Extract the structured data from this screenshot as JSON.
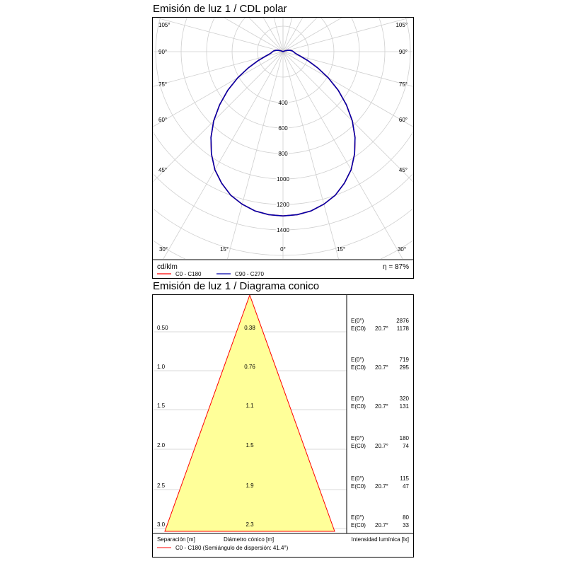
{
  "polar": {
    "title": "Emisión de luz 1 / CDL polar",
    "unit": "cd/klm",
    "efficiency": "η = 87%",
    "legend": [
      {
        "name": "C0 - C180",
        "color": "#ff0000"
      },
      {
        "name": "C90 - C270",
        "color": "#0000aa"
      }
    ]
  },
  "cone": {
    "title": "Emisión de luz 1 / Diagrama conico",
    "footer_labels": {
      "separation": "Separación [m]",
      "diameter": "Diámetro cónico [m]",
      "intensity": "Intensidad lumínica [lx]"
    },
    "legend": "C0 - C180 (Semiángulo de dispersión: 41.4°)",
    "legend_color": "#ff0000",
    "fill_color": "#ffff99"
  },
  "chart_data": [
    {
      "type": "polar",
      "title": "Emisión de luz 1 / CDL polar",
      "radial_unit": "cd/klm",
      "radial_ticks": [
        400,
        600,
        800,
        1000,
        1200,
        1400
      ],
      "angle_labels_left": [
        "105°",
        "90°",
        "75°",
        "60°",
        "45°",
        "30°",
        "15°"
      ],
      "angle_labels_bottom": [
        "30°",
        "15°",
        "0°",
        "15°",
        "30°"
      ],
      "angle_labels_right": [
        "105°",
        "90°",
        "75°",
        "60°",
        "45°",
        "30°",
        "15°"
      ],
      "series": [
        {
          "name": "C90 - C270",
          "color": "#0000aa",
          "angles": [
            0,
            5,
            10,
            15,
            20,
            25,
            30,
            35,
            40,
            45,
            50,
            55,
            60,
            65,
            70,
            75,
            80,
            85,
            90,
            95,
            100,
            105,
            110,
            115,
            120,
            125,
            130,
            135,
            140,
            145,
            150,
            155,
            160,
            165,
            170,
            175,
            180
          ],
          "values": [
            1290,
            1285,
            1270,
            1240,
            1200,
            1140,
            1070,
            980,
            880,
            770,
            650,
            530,
            410,
            300,
            210,
            145,
            108,
            90,
            82,
            72,
            58,
            42,
            24,
            8,
            0,
            0,
            0,
            0,
            0,
            0,
            0,
            0,
            0,
            0,
            0,
            0,
            0
          ]
        },
        {
          "name": "C0 - C180",
          "color": "#ff0000",
          "angles": [
            0,
            5,
            10,
            15,
            20,
            25,
            30,
            35,
            40,
            45,
            50,
            55,
            60,
            65,
            70,
            75,
            80,
            85,
            90,
            95,
            100,
            105,
            110,
            115,
            120,
            125,
            130,
            135,
            140,
            145,
            150,
            155,
            160,
            165,
            170,
            175,
            180
          ],
          "values": [
            1290,
            1285,
            1270,
            1240,
            1200,
            1140,
            1070,
            980,
            880,
            770,
            650,
            530,
            410,
            300,
            210,
            145,
            108,
            90,
            82,
            72,
            58,
            42,
            24,
            8,
            0,
            0,
            0,
            0,
            0,
            0,
            0,
            0,
            0,
            0,
            0,
            0,
            0
          ]
        }
      ]
    },
    {
      "type": "table",
      "title": "Emisión de luz 1 / Diagrama conico",
      "half_angle": "41.4°",
      "rows": [
        {
          "separation": "0.50",
          "diameter": "0.38",
          "e0_label": "E(0°)",
          "ec0_label": "E(C0)",
          "angle": "20.7°",
          "e0": "2876",
          "ec0": "1178"
        },
        {
          "separation": "1.0",
          "diameter": "0.76",
          "e0_label": "E(0°)",
          "ec0_label": "E(C0)",
          "angle": "20.7°",
          "e0": "719",
          "ec0": "295"
        },
        {
          "separation": "1.5",
          "diameter": "1.1",
          "e0_label": "E(0°)",
          "ec0_label": "E(C0)",
          "angle": "20.7°",
          "e0": "320",
          "ec0": "131"
        },
        {
          "separation": "2.0",
          "diameter": "1.5",
          "e0_label": "E(0°)",
          "ec0_label": "E(C0)",
          "angle": "20.7°",
          "e0": "180",
          "ec0": "74"
        },
        {
          "separation": "2.5",
          "diameter": "1.9",
          "e0_label": "E(0°)",
          "ec0_label": "E(C0)",
          "angle": "20.7°",
          "e0": "115",
          "ec0": "47"
        },
        {
          "separation": "3.0",
          "diameter": "2.3",
          "e0_label": "E(0°)",
          "ec0_label": "E(C0)",
          "angle": "20.7°",
          "e0": "80",
          "ec0": "33"
        }
      ]
    }
  ]
}
